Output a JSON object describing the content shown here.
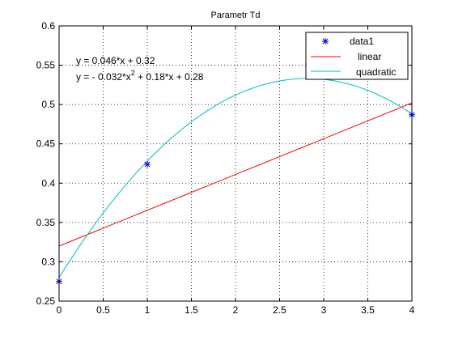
{
  "chart_data": {
    "type": "line",
    "title": "Parametr Td",
    "xlabel": "",
    "ylabel": "",
    "xlim": [
      0,
      4
    ],
    "ylim": [
      0.25,
      0.6
    ],
    "x_ticks": [
      0,
      0.5,
      1,
      1.5,
      2,
      2.5,
      3,
      3.5,
      4
    ],
    "y_ticks": [
      0.25,
      0.3,
      0.35,
      0.4,
      0.45,
      0.5,
      0.55,
      0.6
    ],
    "x_tick_labels": [
      "0",
      "0.5",
      "1",
      "1.5",
      "2",
      "2.5",
      "3",
      "3.5",
      "4"
    ],
    "y_tick_labels": [
      "0.25",
      "0.3",
      "0.35",
      "0.4",
      "0.45",
      "0.5",
      "0.55",
      "0.6"
    ],
    "grid": true,
    "legend_position": "top-right",
    "series": [
      {
        "name": "data1",
        "kind": "markers",
        "marker": "*",
        "color": "#0000ff",
        "x": [
          0,
          1,
          4
        ],
        "y": [
          0.275,
          0.424,
          0.487
        ]
      },
      {
        "name": "linear",
        "kind": "line",
        "color": "#ff0000",
        "x": [
          0,
          4
        ],
        "y": [
          0.32,
          0.502
        ]
      },
      {
        "name": "quadratic",
        "kind": "curve",
        "color": "#00bfbf",
        "coefficients": [
          -0.032,
          0.18,
          0.28
        ],
        "x_range": [
          0,
          4
        ]
      }
    ],
    "annotations": {
      "linear_eq": "y = 0.046*x + 0.32",
      "quad_part1": "y = - 0.032*x",
      "quad_sup": "2",
      "quad_part2": " + 0.18*x + 0.28"
    }
  }
}
